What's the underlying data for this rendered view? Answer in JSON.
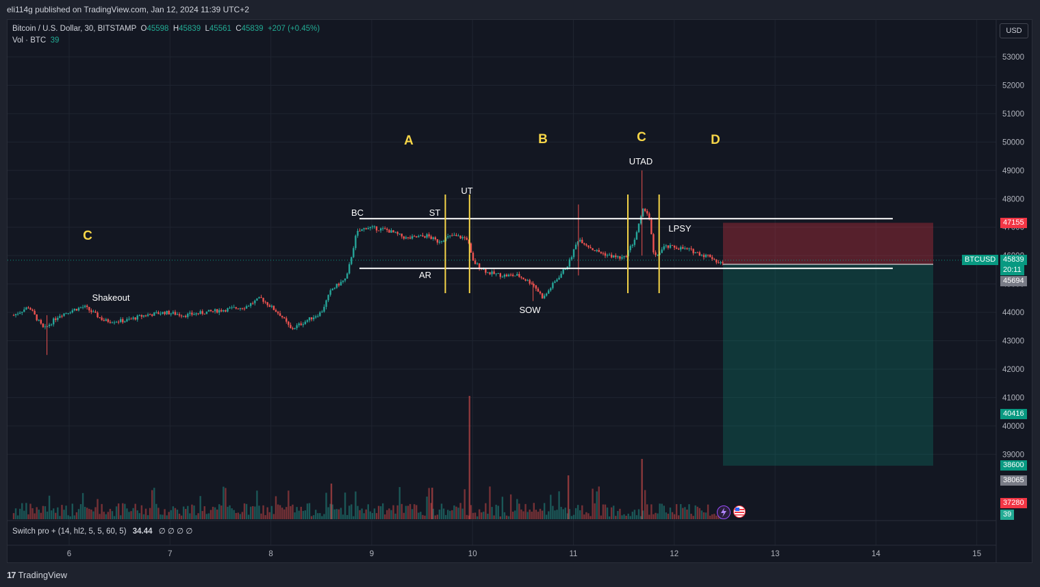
{
  "header": {
    "published": "eli114g published on TradingView.com, Jan 12, 2024 11:39 UTC+2"
  },
  "legend": {
    "symbol": "Bitcoin / U.S. Dollar, 30, BITSTAMP",
    "o_label": "O",
    "o_value": "45598",
    "h_label": "H",
    "h_value": "45839",
    "l_label": "L",
    "l_value": "45561",
    "c_label": "C",
    "c_value": "45839",
    "change": "+207 (+0.45%)",
    "vol_label": "Vol · BTC",
    "vol_value": "39"
  },
  "currency_button": "USD",
  "indicator": {
    "label": "Switch pro + (14, hl2, 5, 5, 60, 5)",
    "value": "34.44",
    "placeholders": "∅ ∅ ∅ ∅"
  },
  "footer": {
    "brand": "TradingView",
    "brand_mark": "17"
  },
  "badges": {
    "target_top": "47155",
    "symbol": "BTCUSD",
    "last": "45839",
    "countdown": "20:11",
    "entry": "45694",
    "mid": "40416",
    "target_low": "38600",
    "gray_low": "38065",
    "vol_red": "37280",
    "vol_green": "39"
  },
  "colors": {
    "up": "#26a69a",
    "down": "#ef5350",
    "yellow": "#f7d648",
    "bg": "#131722"
  },
  "chart_data": {
    "type": "candlestick",
    "x_ticks": [
      "6",
      "7",
      "8",
      "9",
      "10",
      "11",
      "12",
      "13",
      "14",
      "15"
    ],
    "y_ticks": [
      53000,
      52000,
      51000,
      50000,
      49000,
      48000,
      47000,
      46000,
      45000,
      44000,
      43000,
      42000,
      41000,
      40000,
      39000
    ],
    "ylim": [
      38400,
      53800
    ],
    "price_path": [
      [
        5.45,
        43900
      ],
      [
        5.6,
        44200
      ],
      [
        5.75,
        43400
      ],
      [
        5.9,
        43900
      ],
      [
        6.05,
        44100
      ],
      [
        6.15,
        44200
      ],
      [
        6.35,
        43700
      ],
      [
        6.55,
        43700
      ],
      [
        6.75,
        43900
      ],
      [
        6.95,
        44000
      ],
      [
        7.15,
        43900
      ],
      [
        7.35,
        44000
      ],
      [
        7.55,
        44100
      ],
      [
        7.75,
        44200
      ],
      [
        7.9,
        44500
      ],
      [
        8.0,
        44200
      ],
      [
        8.1,
        43900
      ],
      [
        8.2,
        43400
      ],
      [
        8.35,
        43700
      ],
      [
        8.5,
        44000
      ],
      [
        8.6,
        44800
      ],
      [
        8.75,
        45200
      ],
      [
        8.85,
        46800
      ],
      [
        8.95,
        47000
      ],
      [
        9.15,
        46900
      ],
      [
        9.35,
        46600
      ],
      [
        9.55,
        46700
      ],
      [
        9.65,
        46500
      ],
      [
        9.8,
        46700
      ],
      [
        9.95,
        46600
      ],
      [
        10.0,
        45800
      ],
      [
        10.15,
        45400
      ],
      [
        10.3,
        45300
      ],
      [
        10.45,
        45300
      ],
      [
        10.6,
        45000
      ],
      [
        10.7,
        44500
      ],
      [
        10.8,
        45000
      ],
      [
        10.95,
        45700
      ],
      [
        11.05,
        46600
      ],
      [
        11.2,
        46200
      ],
      [
        11.35,
        46000
      ],
      [
        11.5,
        45900
      ],
      [
        11.6,
        46500
      ],
      [
        11.7,
        47700
      ],
      [
        11.75,
        47400
      ],
      [
        11.8,
        45900
      ],
      [
        11.9,
        46300
      ],
      [
        12.0,
        46300
      ],
      [
        12.15,
        46200
      ],
      [
        12.3,
        46000
      ],
      [
        12.35,
        46000
      ],
      [
        12.45,
        45700
      ],
      [
        12.5,
        45839
      ]
    ],
    "levels": {
      "range_high": 47300,
      "range_low": 45550
    },
    "phase_labels": [
      "C",
      "A",
      "B",
      "C",
      "D"
    ],
    "event_labels": [
      "Shakeout",
      "BC",
      "ST",
      "AR",
      "UT",
      "SOW",
      "UTAD",
      "LPSY"
    ],
    "position": {
      "entry": 45694,
      "stop": 47155,
      "target": 38600
    },
    "vertical_markers_x": [
      9.73,
      9.97,
      11.54,
      11.85
    ]
  }
}
